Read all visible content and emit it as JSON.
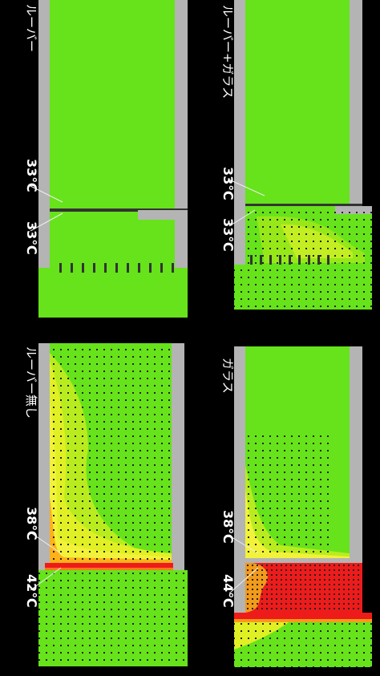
{
  "panels": [
    {
      "id": "louver",
      "caption": "ルーバー",
      "temps": [
        "33℃",
        "33℃"
      ]
    },
    {
      "id": "louver-glass",
      "caption": "ルーバー+ガラス",
      "temps": [
        "33℃",
        "33℃"
      ]
    },
    {
      "id": "no-louver",
      "caption": "ルーバー無し",
      "temps": [
        "38℃",
        "42℃"
      ]
    },
    {
      "id": "glass",
      "caption": "ガラス",
      "temps": [
        "38℃",
        "44℃"
      ]
    }
  ],
  "colors": {
    "background": "#000000",
    "field": "#66e31b",
    "wall": "#b4b4b4",
    "warm": "#f2f23a",
    "hot": "#ff9a1a",
    "hottest": "#ee1b1b"
  }
}
